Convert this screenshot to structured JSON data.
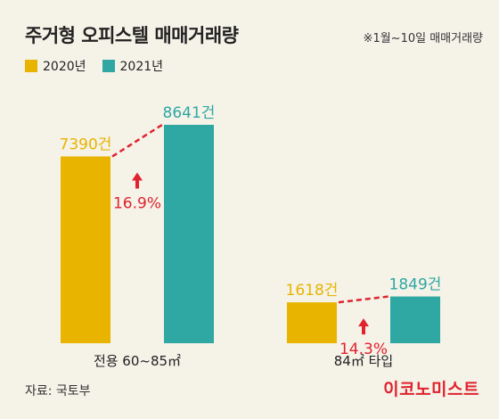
{
  "title": "주거형 오피스텔 매매거래량",
  "note": "※1월~10일 매매거래량",
  "source": "자료: 국토부",
  "brand": "이코노미스트",
  "colors": {
    "series_2020": "#e8b400",
    "series_2021": "#2fa7a3",
    "arrow": "#e0232e",
    "label_2020": "#e8b400",
    "label_2021": "#2fa7a3"
  },
  "chart_data": {
    "type": "bar",
    "categories": [
      "전용 60~85㎡",
      "84㎡ 타입"
    ],
    "series": [
      {
        "name": "2020년",
        "values": [
          7390,
          1618
        ],
        "labels": [
          "7390건",
          "1618건"
        ]
      },
      {
        "name": "2021년",
        "values": [
          8641,
          1849
        ],
        "labels": [
          "8641건",
          "1849건"
        ]
      }
    ],
    "changes": [
      "16.9%",
      "14.3%"
    ],
    "legend_position": "top-left",
    "grid": false
  }
}
